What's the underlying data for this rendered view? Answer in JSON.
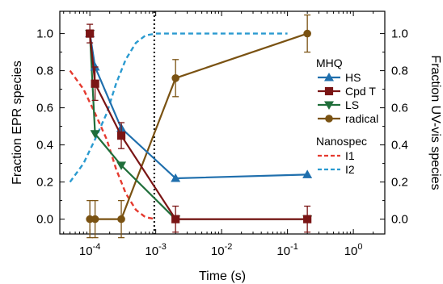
{
  "chart_data": {
    "type": "line",
    "title": "",
    "xlabel": "Time (s)",
    "ylabel_left": "Fraction EPR species",
    "ylabel_right": "Fraction UV-vis species",
    "x_scale": "log",
    "xlim": [
      3.5e-05,
      3
    ],
    "ylim": [
      -0.08,
      1.12
    ],
    "x_ticks": [
      0.0001,
      0.001,
      0.01,
      0.1,
      1
    ],
    "x_tick_labels": [
      {
        "base": "10",
        "exp": "-4"
      },
      {
        "base": "10",
        "exp": "-3"
      },
      {
        "base": "10",
        "exp": "-2"
      },
      {
        "base": "10",
        "exp": "-1"
      },
      {
        "base": "10",
        "exp": "0"
      }
    ],
    "y_ticks": [
      0.0,
      0.2,
      0.4,
      0.6,
      0.8,
      1.0
    ],
    "y_tick_labels": [
      "0.0",
      "0.2",
      "0.4",
      "0.6",
      "0.8",
      "1.0"
    ],
    "vline_x": 0.00095,
    "grid": false,
    "legend_position": "right",
    "legend_groups": [
      {
        "title": "MHQ",
        "entries": [
          "HS",
          "Cpd T",
          "LS",
          "radical"
        ]
      },
      {
        "title": "Nanospec",
        "entries": [
          "I1",
          "I2"
        ]
      }
    ],
    "series": [
      {
        "name": "HS",
        "color": "#1f6fad",
        "marker": "triangle-up",
        "style": "solid",
        "x": [
          0.0001,
          0.00012,
          0.0003,
          0.002,
          0.2
        ],
        "y": [
          1.0,
          0.82,
          0.49,
          0.22,
          0.24
        ],
        "err": [
          0,
          0,
          0,
          0,
          0
        ]
      },
      {
        "name": "Cpd T",
        "color": "#7a1515",
        "marker": "square",
        "style": "solid",
        "x": [
          0.0001,
          0.00012,
          0.0003,
          0.002,
          0.2
        ],
        "y": [
          1.0,
          0.73,
          0.45,
          0.0,
          0.0
        ],
        "err": [
          0.05,
          0.09,
          0.07,
          0.07,
          0.07
        ]
      },
      {
        "name": "LS",
        "color": "#1f6e3a",
        "marker": "triangle-down",
        "style": "solid",
        "x": [
          0.0001,
          0.00012,
          0.0003,
          0.002,
          0.2
        ],
        "y": [
          1.0,
          0.46,
          0.29,
          0.0,
          0.0
        ],
        "err": [
          0,
          0,
          0,
          0,
          0
        ]
      },
      {
        "name": "radical",
        "color": "#7a5212",
        "marker": "circle",
        "style": "solid",
        "x": [
          0.0001,
          0.00012,
          0.0003,
          0.002,
          0.2
        ],
        "y": [
          0.0,
          0.0,
          0.0,
          0.76,
          1.0
        ],
        "err": [
          0.1,
          0.1,
          0.1,
          0.1,
          0.1
        ]
      },
      {
        "name": "I1",
        "color": "#e53a2f",
        "marker": "none",
        "style": "dashed",
        "x": [
          5e-05,
          8e-05,
          0.00012,
          0.00018,
          0.00025,
          0.00035,
          0.0005,
          0.0007,
          0.001
        ],
        "y": [
          0.8,
          0.7,
          0.57,
          0.43,
          0.27,
          0.14,
          0.05,
          0.01,
          0.0
        ],
        "err": []
      },
      {
        "name": "I2",
        "color": "#2a9ad0",
        "marker": "none",
        "style": "dashed",
        "x": [
          5e-05,
          8e-05,
          0.00012,
          0.00018,
          0.00025,
          0.00035,
          0.0005,
          0.0007,
          0.001,
          0.003,
          0.01,
          0.1
        ],
        "y": [
          0.2,
          0.3,
          0.43,
          0.57,
          0.73,
          0.86,
          0.95,
          0.99,
          1.0,
          1.0,
          1.0,
          1.0
        ],
        "err": []
      }
    ]
  }
}
